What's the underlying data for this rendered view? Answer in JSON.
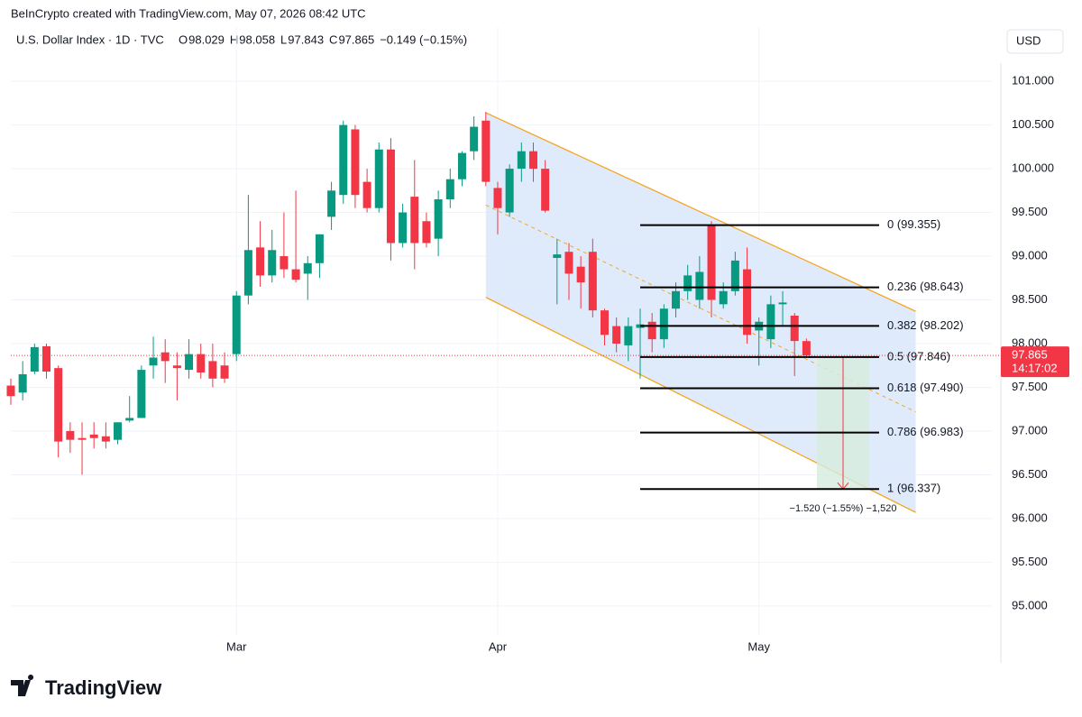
{
  "header": {
    "credit": "BeInCrypto created with TradingView.com, May 07, 2026 08:42 UTC",
    "symbol": "U.S. Dollar Index · 1D · TVC",
    "ohlc": [
      {
        "label": "O",
        "value": 98.029
      },
      {
        "label": "H",
        "value": 98.058
      },
      {
        "label": "L",
        "value": 97.843
      },
      {
        "label": "C",
        "value": 97.865
      }
    ],
    "change": "−0.149 (−0.15%)",
    "currency": "USD"
  },
  "chart_data": {
    "type": "candlestick",
    "categories": [
      null,
      null,
      null,
      null,
      null,
      null,
      null,
      null,
      null,
      null,
      null,
      null,
      null,
      null,
      null,
      null,
      null,
      null,
      null,
      "Mar",
      null,
      null,
      null,
      null,
      null,
      null,
      null,
      null,
      null,
      null,
      null,
      null,
      null,
      null,
      null,
      null,
      null,
      null,
      null,
      null,
      null,
      "Apr",
      null,
      null,
      null,
      null,
      null,
      null,
      null,
      null,
      null,
      null,
      null,
      null,
      null,
      null,
      null,
      null,
      null,
      null,
      null,
      null,
      null,
      "May",
      null,
      null,
      null,
      null
    ],
    "open": [
      97.52,
      97.44,
      97.68,
      97.97,
      97.72,
      97.0,
      96.92,
      96.96,
      96.94,
      96.9,
      97.12,
      97.15,
      97.75,
      97.9,
      97.75,
      97.7,
      97.88,
      97.8,
      97.75,
      97.88,
      98.55,
      99.1,
      98.78,
      99.0,
      98.85,
      98.8,
      98.92,
      99.45,
      99.7,
      100.45,
      99.85,
      99.55,
      100.22,
      99.15,
      99.68,
      99.4,
      99.2,
      99.65,
      99.88,
      100.2,
      100.55,
      99.78,
      99.5,
      100.0,
      100.2,
      100.0,
      98.98,
      99.05,
      98.88,
      99.05,
      98.38,
      98.2,
      97.98,
      98.18,
      98.25,
      98.05,
      98.4,
      98.6,
      98.5,
      99.35,
      98.45,
      98.6,
      98.85,
      98.15,
      98.05,
      98.45,
      98.32,
      98.029
    ],
    "high": [
      97.6,
      97.8,
      98.0,
      98.0,
      97.75,
      97.1,
      97.1,
      97.1,
      97.1,
      97.1,
      97.4,
      97.75,
      98.08,
      98.05,
      97.9,
      98.05,
      98.0,
      98.0,
      97.9,
      98.6,
      99.7,
      99.4,
      99.3,
      99.5,
      99.75,
      99.0,
      99.25,
      99.85,
      100.55,
      100.5,
      100.0,
      100.3,
      100.35,
      99.6,
      100.1,
      99.5,
      99.75,
      100.0,
      100.2,
      100.6,
      100.65,
      99.85,
      100.05,
      100.3,
      100.3,
      100.1,
      99.2,
      99.15,
      99.0,
      99.2,
      98.4,
      98.3,
      98.3,
      98.4,
      98.35,
      98.45,
      98.7,
      98.9,
      99.0,
      99.4,
      98.7,
      99.05,
      99.1,
      98.3,
      98.55,
      98.6,
      98.35,
      98.058
    ],
    "low": [
      97.3,
      97.35,
      97.65,
      97.6,
      96.7,
      96.75,
      96.5,
      96.8,
      96.8,
      96.85,
      97.1,
      97.15,
      97.6,
      97.55,
      97.35,
      97.6,
      97.6,
      97.5,
      97.55,
      97.8,
      98.45,
      98.65,
      98.7,
      98.75,
      98.7,
      98.5,
      98.75,
      99.3,
      99.6,
      99.55,
      99.5,
      99.5,
      98.95,
      99.1,
      98.85,
      99.1,
      99.0,
      99.55,
      99.8,
      100.1,
      99.8,
      99.25,
      99.45,
      99.85,
      99.85,
      99.5,
      98.45,
      98.5,
      98.4,
      98.3,
      97.98,
      97.9,
      97.8,
      97.6,
      97.9,
      97.95,
      98.3,
      98.5,
      98.4,
      98.3,
      98.4,
      98.55,
      98.0,
      97.75,
      97.95,
      98.2,
      97.63,
      97.843
    ],
    "close": [
      97.4,
      97.65,
      97.96,
      97.68,
      96.88,
      96.9,
      96.9,
      96.92,
      96.88,
      97.1,
      97.15,
      97.7,
      97.84,
      97.8,
      97.72,
      97.88,
      97.67,
      97.6,
      97.6,
      98.55,
      99.07,
      98.78,
      99.07,
      98.85,
      98.73,
      98.92,
      99.25,
      99.75,
      100.5,
      99.7,
      99.55,
      100.22,
      99.15,
      99.5,
      99.15,
      99.15,
      99.65,
      99.88,
      100.18,
      100.48,
      99.85,
      99.55,
      100.0,
      100.2,
      100.0,
      99.52,
      99.02,
      98.8,
      98.7,
      98.38,
      98.1,
      98.0,
      98.2,
      98.22,
      98.05,
      98.4,
      98.6,
      98.78,
      98.82,
      98.5,
      98.6,
      98.95,
      98.1,
      98.25,
      98.45,
      98.47,
      98.03,
      97.865
    ],
    "up_color": "#089981",
    "down_color": "#f23645",
    "ylim": [
      94.71,
      101.62
    ],
    "yticks": [
      {
        "value": 95,
        "label": "95.000"
      },
      {
        "value": 95.5,
        "label": "95.500"
      },
      {
        "value": 96,
        "label": "96.000"
      },
      {
        "value": 96.5,
        "label": "96.500"
      },
      {
        "value": 97,
        "label": "97.000"
      },
      {
        "value": 97.5,
        "label": "97.500"
      },
      {
        "value": 98,
        "label": "98.000"
      },
      {
        "value": 98.5,
        "label": "98.500"
      },
      {
        "value": 99,
        "label": "99.000"
      },
      {
        "value": 99.5,
        "label": "99.500"
      },
      {
        "value": 100,
        "label": "100.000"
      },
      {
        "value": 100.5,
        "label": "100.500"
      },
      {
        "value": 101,
        "label": "101.000"
      }
    ],
    "grid": true,
    "last_price": 97.865,
    "countdown": "14:17:02",
    "channel": {
      "upper": [
        100.64,
        98.37
      ],
      "lower": [
        98.53,
        96.07
      ],
      "color": "#f5a623",
      "fill": "#dce9fb"
    },
    "fib_levels": [
      {
        "value": 99.355,
        "label": "0 (99.355)"
      },
      {
        "value": 98.643,
        "label": "0.236 (98.643)"
      },
      {
        "value": 98.202,
        "label": "0.382 (98.202)"
      },
      {
        "value": 97.846,
        "label": "0.5 (97.846)"
      },
      {
        "value": 97.49,
        "label": "0.618 (97.490)"
      },
      {
        "value": 96.983,
        "label": "0.786 (96.983)"
      },
      {
        "value": 96.337,
        "label": "1 (96.337)"
      }
    ],
    "measure": {
      "label": "−1.520 (−1.55%) −1,520"
    }
  },
  "footer": {
    "brand": "TradingView"
  }
}
